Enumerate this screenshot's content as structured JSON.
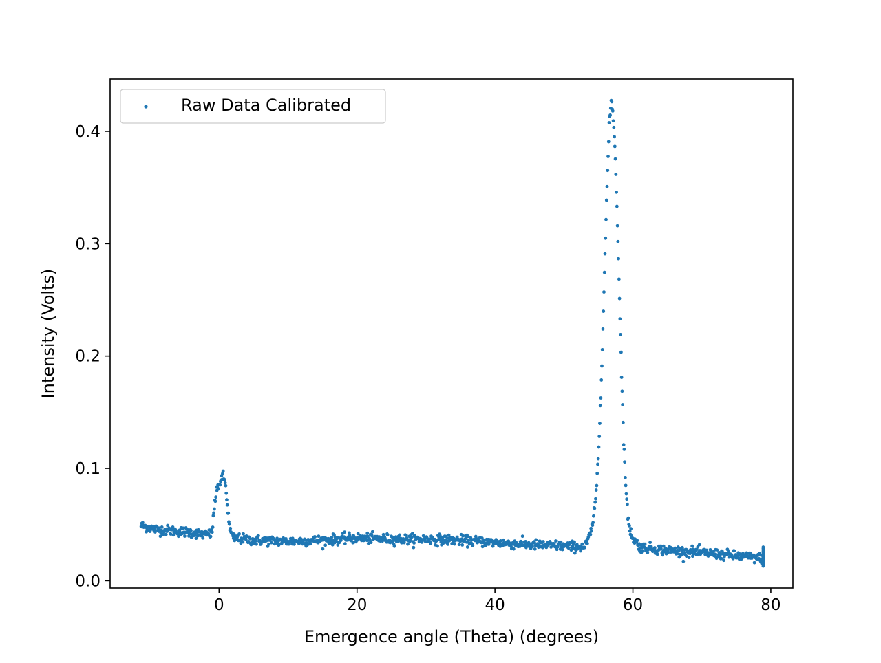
{
  "chart_data": {
    "type": "scatter",
    "xlabel": "Emergence angle (Theta) (degrees)",
    "ylabel": "Intensity (Volts)",
    "xlim": [
      -15.8,
      83.2
    ],
    "ylim": [
      -0.0065,
      0.4465
    ],
    "x_ticks": [
      0,
      20,
      40,
      60,
      80
    ],
    "y_ticks": [
      0.0,
      0.1,
      0.2,
      0.3,
      0.4
    ],
    "x_tick_labels": [
      "0",
      "20",
      "40",
      "60",
      "80"
    ],
    "y_tick_labels": [
      "0.0",
      "0.1",
      "0.2",
      "0.3",
      "0.4"
    ],
    "grid": false,
    "legend_position": "top-left",
    "series": [
      {
        "name": "Raw Data Calibrated",
        "color": "#1f77b4",
        "x_range": [
          -11.3,
          78.9
        ],
        "description_points": [
          [
            -11.3,
            0.049
          ],
          [
            -10.5,
            0.048
          ],
          [
            -9.5,
            0.046
          ],
          [
            -8.0,
            0.045
          ],
          [
            -6.0,
            0.044
          ],
          [
            -4.0,
            0.043
          ],
          [
            -2.0,
            0.041
          ],
          [
            -1.0,
            0.042
          ],
          [
            -0.8,
            0.06
          ],
          [
            -0.5,
            0.075
          ],
          [
            -0.2,
            0.083
          ],
          [
            0.0,
            0.086
          ],
          [
            0.3,
            0.09
          ],
          [
            0.6,
            0.093
          ],
          [
            0.9,
            0.087
          ],
          [
            1.1,
            0.075
          ],
          [
            1.3,
            0.06
          ],
          [
            1.5,
            0.047
          ],
          [
            2.0,
            0.038
          ],
          [
            5.0,
            0.036
          ],
          [
            10.0,
            0.035
          ],
          [
            15.0,
            0.036
          ],
          [
            20.0,
            0.038
          ],
          [
            25.0,
            0.037
          ],
          [
            30.0,
            0.037
          ],
          [
            35.0,
            0.036
          ],
          [
            40.0,
            0.034
          ],
          [
            45.0,
            0.032
          ],
          [
            50.0,
            0.031
          ],
          [
            53.0,
            0.03
          ],
          [
            53.5,
            0.036
          ],
          [
            54.0,
            0.045
          ],
          [
            54.5,
            0.065
          ],
          [
            54.8,
            0.09
          ],
          [
            55.1,
            0.125
          ],
          [
            55.4,
            0.175
          ],
          [
            55.7,
            0.235
          ],
          [
            56.0,
            0.3
          ],
          [
            56.3,
            0.36
          ],
          [
            56.6,
            0.41
          ],
          [
            56.9,
            0.428
          ],
          [
            57.2,
            0.41
          ],
          [
            57.5,
            0.37
          ],
          [
            57.8,
            0.31
          ],
          [
            58.1,
            0.245
          ],
          [
            58.4,
            0.175
          ],
          [
            58.7,
            0.12
          ],
          [
            59.0,
            0.08
          ],
          [
            59.3,
            0.055
          ],
          [
            59.6,
            0.045
          ],
          [
            60.0,
            0.038
          ],
          [
            61.0,
            0.03
          ],
          [
            65.0,
            0.027
          ],
          [
            70.0,
            0.025
          ],
          [
            75.0,
            0.022
          ],
          [
            78.9,
            0.02
          ]
        ]
      }
    ]
  }
}
